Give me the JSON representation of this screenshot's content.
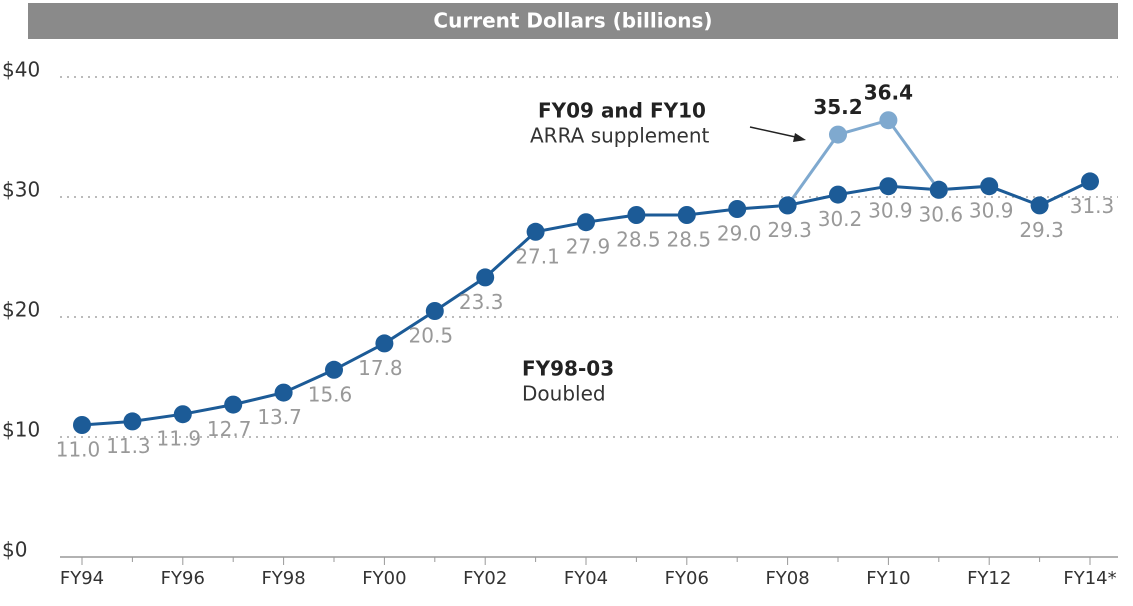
{
  "chart_data": {
    "type": "line",
    "title": "Current Dollars (billions)",
    "categories": [
      "FY94",
      null,
      "FY96",
      null,
      "FY98",
      null,
      "FY00",
      null,
      "FY02",
      null,
      "FY04",
      null,
      "FY06",
      null,
      "FY08",
      null,
      "FY10",
      null,
      "FY12",
      null,
      "FY14*"
    ],
    "series": [
      {
        "color": "#1c5b97",
        "values": [
          11.0,
          11.3,
          11.9,
          12.7,
          13.7,
          15.6,
          17.8,
          20.5,
          23.3,
          27.1,
          27.9,
          28.5,
          28.5,
          29.0,
          29.3,
          30.2,
          30.9,
          30.6,
          30.9,
          29.3,
          31.3
        ],
        "value_labels": [
          "11.0",
          "11.3",
          "11.9",
          "12.7",
          "13.7",
          "15.6",
          "17.8",
          "20.5",
          "23.3",
          "27.1",
          "27.9",
          "28.5",
          "28.5",
          "29.0",
          "29.3",
          "30.2",
          "30.9",
          "30.6",
          "30.9",
          "29.3",
          "31.3"
        ]
      },
      {
        "color": "#7fa9cf",
        "values": [
          null,
          null,
          null,
          null,
          null,
          null,
          null,
          null,
          null,
          null,
          null,
          null,
          null,
          null,
          29.3,
          35.2,
          36.4,
          30.6,
          null,
          null,
          null
        ],
        "value_labels": [
          null,
          null,
          null,
          null,
          null,
          null,
          null,
          null,
          null,
          null,
          null,
          null,
          null,
          null,
          null,
          "35.2",
          "36.4",
          null,
          null,
          null,
          null
        ]
      }
    ],
    "ylim": [
      0,
      40
    ],
    "yticks": [
      {
        "value": 0,
        "label": "$0"
      },
      {
        "value": 10,
        "label": "$10"
      },
      {
        "value": 20,
        "label": "$20"
      },
      {
        "value": 30,
        "label": "$30"
      },
      {
        "value": 40,
        "label": "$40"
      }
    ],
    "grid": true,
    "annotations": [
      {
        "title": "FY09 and FY10",
        "text": "ARRA supplement"
      },
      {
        "title": "FY98-03",
        "text": "Doubled"
      }
    ]
  }
}
